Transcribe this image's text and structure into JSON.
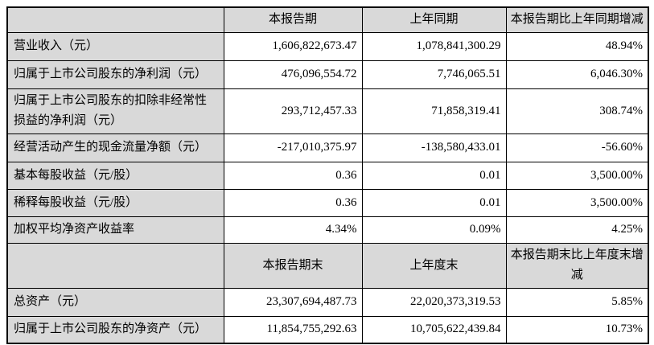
{
  "colors": {
    "header_bg": "#D9D9D9",
    "label_bg": "#D9D9D9",
    "data_bg": "#FFFFFF",
    "border": "#000000",
    "text": "#000000"
  },
  "table": {
    "section1": {
      "headers": [
        "",
        "本报告期",
        "上年同期",
        "本报告期比上年同期增减"
      ],
      "rows": [
        {
          "label": "营业收入（元）",
          "current": "1,606,822,673.47",
          "prior": "1,078,841,300.29",
          "change": "48.94%"
        },
        {
          "label": "归属于上市公司股东的净利润（元）",
          "current": "476,096,554.72",
          "prior": "7,746,065.51",
          "change": "6,046.30%"
        },
        {
          "label": "归属于上市公司股东的扣除非经常性损益的净利润（元）",
          "current": "293,712,457.33",
          "prior": "71,858,319.41",
          "change": "308.74%"
        },
        {
          "label": "经营活动产生的现金流量净额（元）",
          "current": "-217,010,375.97",
          "prior": "-138,580,433.01",
          "change": "-56.60%"
        },
        {
          "label": "基本每股收益（元/股）",
          "current": "0.36",
          "prior": "0.01",
          "change": "3,500.00%"
        },
        {
          "label": "稀释每股收益（元/股）",
          "current": "0.36",
          "prior": "0.01",
          "change": "3,500.00%"
        },
        {
          "label": "加权平均净资产收益率",
          "current": "4.34%",
          "prior": "0.09%",
          "change": "4.25%"
        }
      ]
    },
    "section2": {
      "headers": [
        "",
        "本报告期末",
        "上年度末",
        "本报告期末比上年度末增减"
      ],
      "rows": [
        {
          "label": "总资产（元）",
          "current": "23,307,694,487.73",
          "prior": "22,020,373,319.53",
          "change": "5.85%"
        },
        {
          "label": "归属于上市公司股东的净资产（元）",
          "current": "11,854,755,292.63",
          "prior": "10,705,622,439.84",
          "change": "10.73%"
        }
      ]
    }
  }
}
